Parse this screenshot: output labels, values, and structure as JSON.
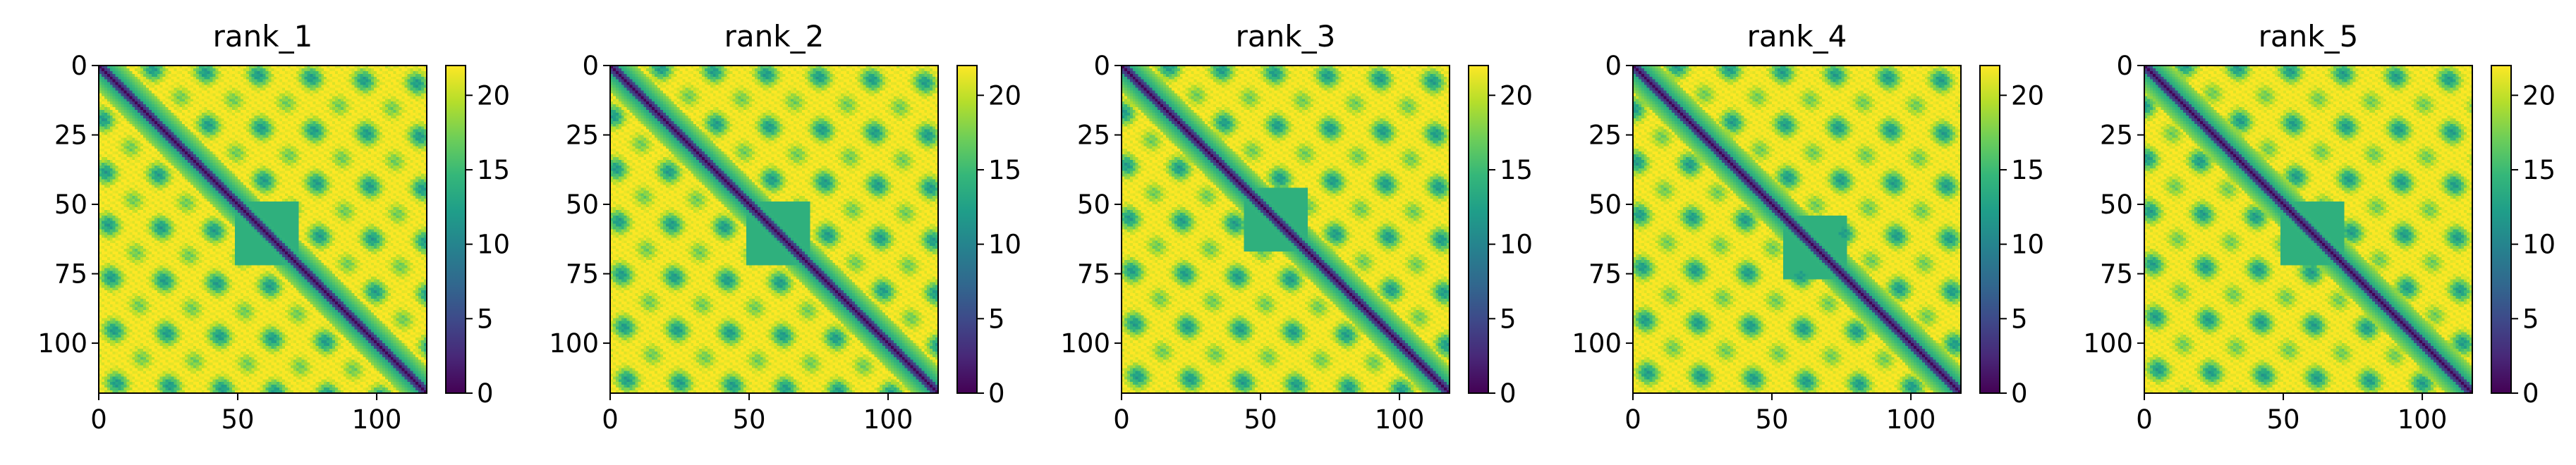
{
  "chart_data": [
    {
      "type": "heatmap",
      "title": "rank_1",
      "matrix_size": 118,
      "xlim": [
        0,
        118
      ],
      "ylim": [
        118,
        0
      ],
      "x_ticks": [
        0,
        50,
        100
      ],
      "y_ticks": [
        0,
        25,
        50,
        75,
        100
      ],
      "colorbar": {
        "min": 0,
        "max": 22,
        "ticks": [
          0,
          5,
          10,
          15,
          20
        ],
        "colormap": "viridis"
      },
      "region_center": 60
    },
    {
      "type": "heatmap",
      "title": "rank_2",
      "matrix_size": 118,
      "xlim": [
        0,
        118
      ],
      "ylim": [
        118,
        0
      ],
      "x_ticks": [
        0,
        50,
        100
      ],
      "y_ticks": [
        0,
        25,
        50,
        75,
        100
      ],
      "colorbar": {
        "min": 0,
        "max": 22,
        "ticks": [
          0,
          5,
          10,
          15,
          20
        ],
        "colormap": "viridis"
      },
      "region_center": 60
    },
    {
      "type": "heatmap",
      "title": "rank_3",
      "matrix_size": 118,
      "xlim": [
        0,
        118
      ],
      "ylim": [
        118,
        0
      ],
      "x_ticks": [
        0,
        50,
        100
      ],
      "y_ticks": [
        0,
        25,
        50,
        75,
        100
      ],
      "colorbar": {
        "min": 0,
        "max": 22,
        "ticks": [
          0,
          5,
          10,
          15,
          20
        ],
        "colormap": "viridis"
      },
      "region_center": 55
    },
    {
      "type": "heatmap",
      "title": "rank_4",
      "matrix_size": 118,
      "xlim": [
        0,
        118
      ],
      "ylim": [
        118,
        0
      ],
      "x_ticks": [
        0,
        50,
        100
      ],
      "y_ticks": [
        0,
        25,
        50,
        75,
        100
      ],
      "colorbar": {
        "min": 0,
        "max": 22,
        "ticks": [
          0,
          5,
          10,
          15,
          20
        ],
        "colormap": "viridis"
      },
      "region_center": 65
    },
    {
      "type": "heatmap",
      "title": "rank_5",
      "matrix_size": 118,
      "xlim": [
        0,
        118
      ],
      "ylim": [
        118,
        0
      ],
      "x_ticks": [
        0,
        50,
        100
      ],
      "y_ticks": [
        0,
        25,
        50,
        75,
        100
      ],
      "colorbar": {
        "min": 0,
        "max": 22,
        "ticks": [
          0,
          5,
          10,
          15,
          20
        ],
        "colormap": "viridis"
      },
      "region_center": 60
    }
  ],
  "colors": {
    "viridis": [
      "#440154",
      "#482878",
      "#3e4989",
      "#31688e",
      "#26828e",
      "#1f9e89",
      "#35b779",
      "#6ece58",
      "#b5de2b",
      "#fde725"
    ]
  }
}
